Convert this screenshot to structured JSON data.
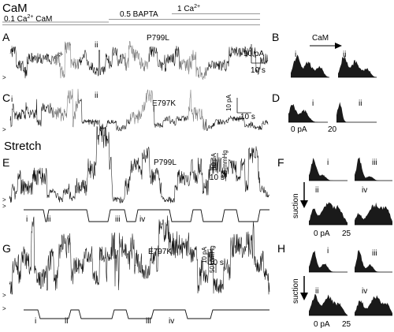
{
  "header": {
    "section_title": "CaM",
    "solution_1": "0.1 Ca",
    "solution_1_sup": "2+",
    "solution_1_tail": " CaM",
    "solution_2": "0.5 BAPTA",
    "solution_3": "1 Ca",
    "solution_3_sup": "2+"
  },
  "panels": {
    "A": {
      "letter": "A",
      "mutant": "P799L",
      "label_i": "i",
      "label_mix": "mix",
      "label_ii": "ii",
      "scale_y": "10 pA",
      "scale_x": "10 s",
      "closed_marker": ">"
    },
    "B": {
      "letter": "B",
      "cam_label": "CaM",
      "label_i": "i",
      "label_ii": "ii"
    },
    "C": {
      "letter": "C",
      "mutant": "E797K",
      "label_i": "i",
      "label_ii": "ii",
      "scale_y": "10 pA",
      "scale_x": "10 s",
      "closed_marker": ">"
    },
    "D": {
      "letter": "D",
      "label_i": "i",
      "label_ii": "ii",
      "tick_0": "0 pA",
      "tick_20": "20"
    },
    "stretch_title": "Stretch",
    "E": {
      "letter": "E",
      "mutant": "P799L",
      "scale_y": "10 pA",
      "scale_p": "50 mmHg",
      "scale_x": "10 s",
      "marker_1": ">",
      "marker_2": ">",
      "pressure_labels": [
        "i",
        "ii",
        "iii",
        "iv"
      ]
    },
    "F": {
      "letter": "F",
      "suction": "suction",
      "label_i": "i",
      "label_ii": "ii",
      "label_iii": "iii",
      "label_iv": "iv",
      "tick_0": "0 pA",
      "tick_25": "25"
    },
    "G": {
      "letter": "G",
      "mutant": "E797K",
      "scale_y": "10 pA",
      "scale_p": "50 mmHg",
      "scale_x": "10 s",
      "marker_1": ">",
      "marker_2": ">",
      "pressure_labels": [
        "i",
        "ii",
        "iii",
        "iv"
      ]
    },
    "H": {
      "letter": "H",
      "suction": "suction",
      "label_i": "i",
      "label_ii": "ii",
      "label_iii": "iii",
      "label_iv": "iv",
      "tick_0": "0 pA",
      "tick_25": "25"
    }
  },
  "colors": {
    "trace": "#111111",
    "mix_segment": "#777777",
    "solution_line": "#777777"
  }
}
